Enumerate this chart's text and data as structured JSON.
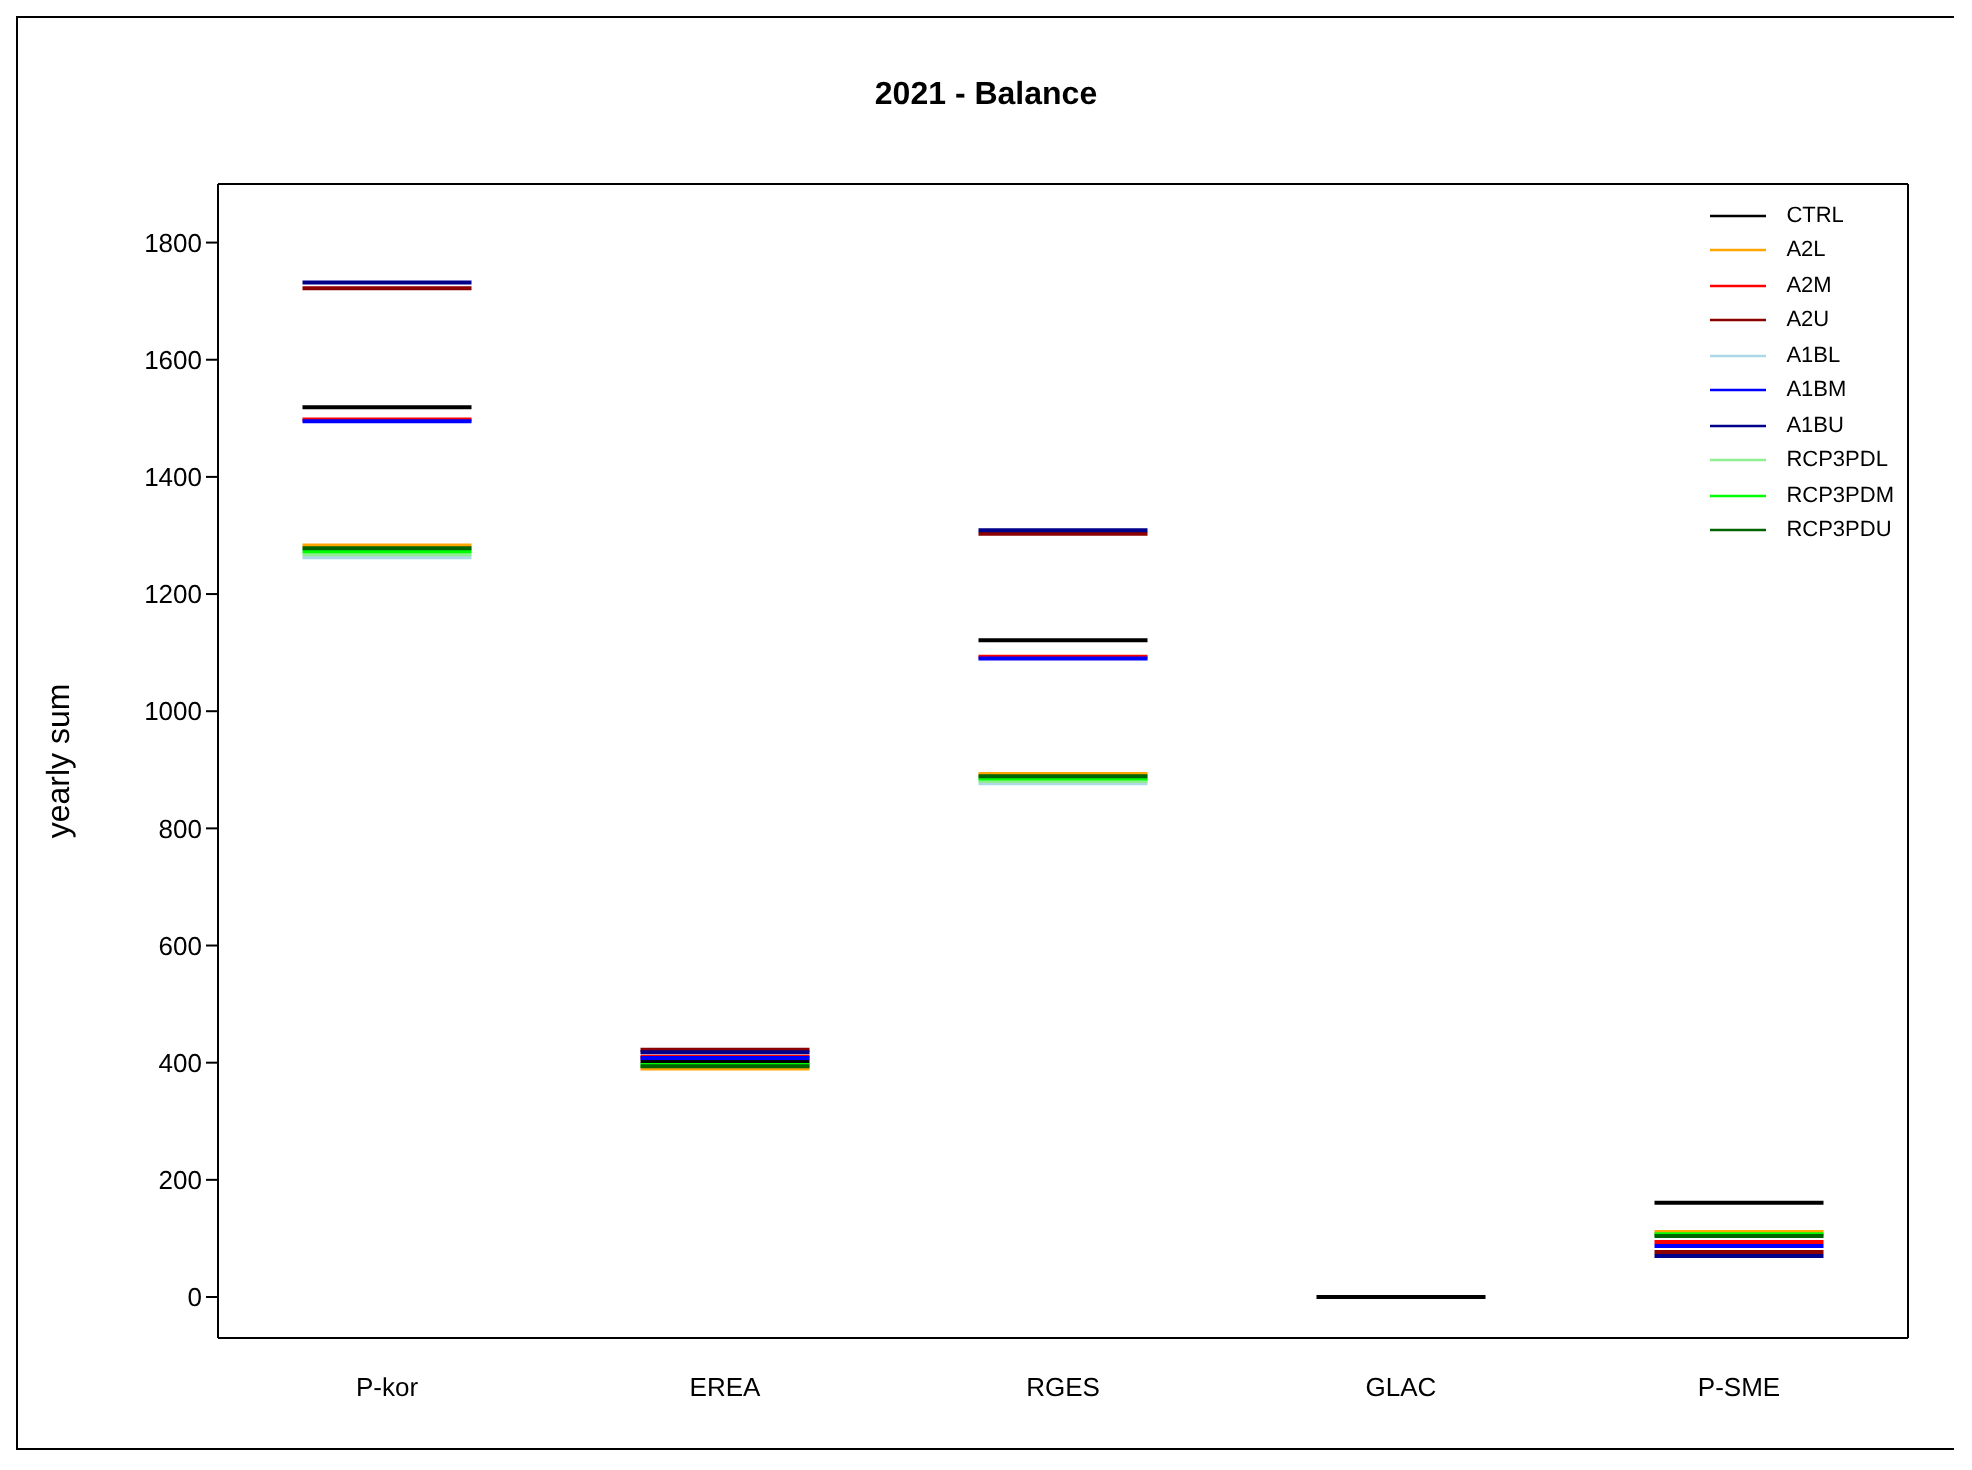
{
  "chart_data": {
    "type": "line",
    "title": "2021 - Balance",
    "ylabel": "yearly sum",
    "categories": [
      null,
      "P-kor",
      null,
      null,
      null,
      "EREA",
      null,
      null,
      null,
      "RGES",
      null,
      null,
      null,
      "GLAC",
      null,
      null,
      null,
      "P-SME",
      null
    ],
    "ylim": [
      -70,
      1900
    ],
    "yticks": [
      0,
      200,
      400,
      600,
      800,
      1000,
      1200,
      1400,
      1600,
      1800
    ],
    "grid": false,
    "legend": "top right",
    "marker": "none",
    "line_style": "solid",
    "series": [
      {
        "name": "CTRL",
        "color": "#000000",
        "values": [
          1519,
          1519,
          1519,
          null,
          402,
          402,
          402,
          null,
          1121,
          1121,
          1121,
          null,
          0,
          0,
          0,
          null,
          161,
          161,
          161
        ]
      },
      {
        "name": "A2L",
        "color": "#ffa500",
        "values": [
          1283,
          1283,
          1283,
          null,
          390,
          390,
          390,
          null,
          893,
          893,
          893,
          null,
          null,
          null,
          null,
          null,
          111,
          111,
          111
        ]
      },
      {
        "name": "A2M",
        "color": "#ff0000",
        "values": [
          1498,
          1498,
          1498,
          null,
          410,
          410,
          410,
          null,
          1093,
          1093,
          1093,
          null,
          null,
          null,
          null,
          null,
          94,
          94,
          94
        ]
      },
      {
        "name": "A2U",
        "color": "#8b0000",
        "values": [
          1722,
          1722,
          1722,
          null,
          422,
          422,
          422,
          null,
          1303,
          1303,
          1303,
          null,
          null,
          null,
          null,
          null,
          77,
          77,
          77
        ]
      },
      {
        "name": "A1BL",
        "color": "#add8e6",
        "values": [
          1263,
          1263,
          1263,
          null,
          null,
          null,
          null,
          null,
          877,
          877,
          877,
          null,
          null,
          null,
          null,
          null,
          null,
          null,
          null
        ]
      },
      {
        "name": "A1BM",
        "color": "#0000ff",
        "values": [
          1495,
          1495,
          1495,
          null,
          408,
          408,
          408,
          null,
          1090,
          1090,
          1090,
          null,
          null,
          null,
          null,
          null,
          87,
          87,
          87
        ]
      },
      {
        "name": "A1BU",
        "color": "#00008b",
        "values": [
          1732,
          1732,
          1732,
          null,
          418,
          418,
          418,
          null,
          1309,
          1309,
          1309,
          null,
          null,
          null,
          null,
          null,
          70,
          70,
          70
        ]
      },
      {
        "name": "RCP3PDL",
        "color": "#90ee90",
        "values": [
          1268,
          1268,
          1268,
          null,
          null,
          null,
          null,
          null,
          881,
          881,
          881,
          null,
          null,
          null,
          null,
          null,
          null,
          null,
          null
        ]
      },
      {
        "name": "RCP3PDM",
        "color": "#00ff00",
        "values": [
          1273,
          1273,
          1273,
          null,
          396,
          396,
          396,
          null,
          885,
          885,
          885,
          null,
          null,
          null,
          null,
          null,
          107,
          107,
          107
        ]
      },
      {
        "name": "RCP3PDU",
        "color": "#006400",
        "values": [
          1278,
          1278,
          1278,
          null,
          394,
          394,
          394,
          null,
          889,
          889,
          889,
          null,
          null,
          null,
          null,
          null,
          104,
          104,
          104
        ]
      }
    ]
  }
}
